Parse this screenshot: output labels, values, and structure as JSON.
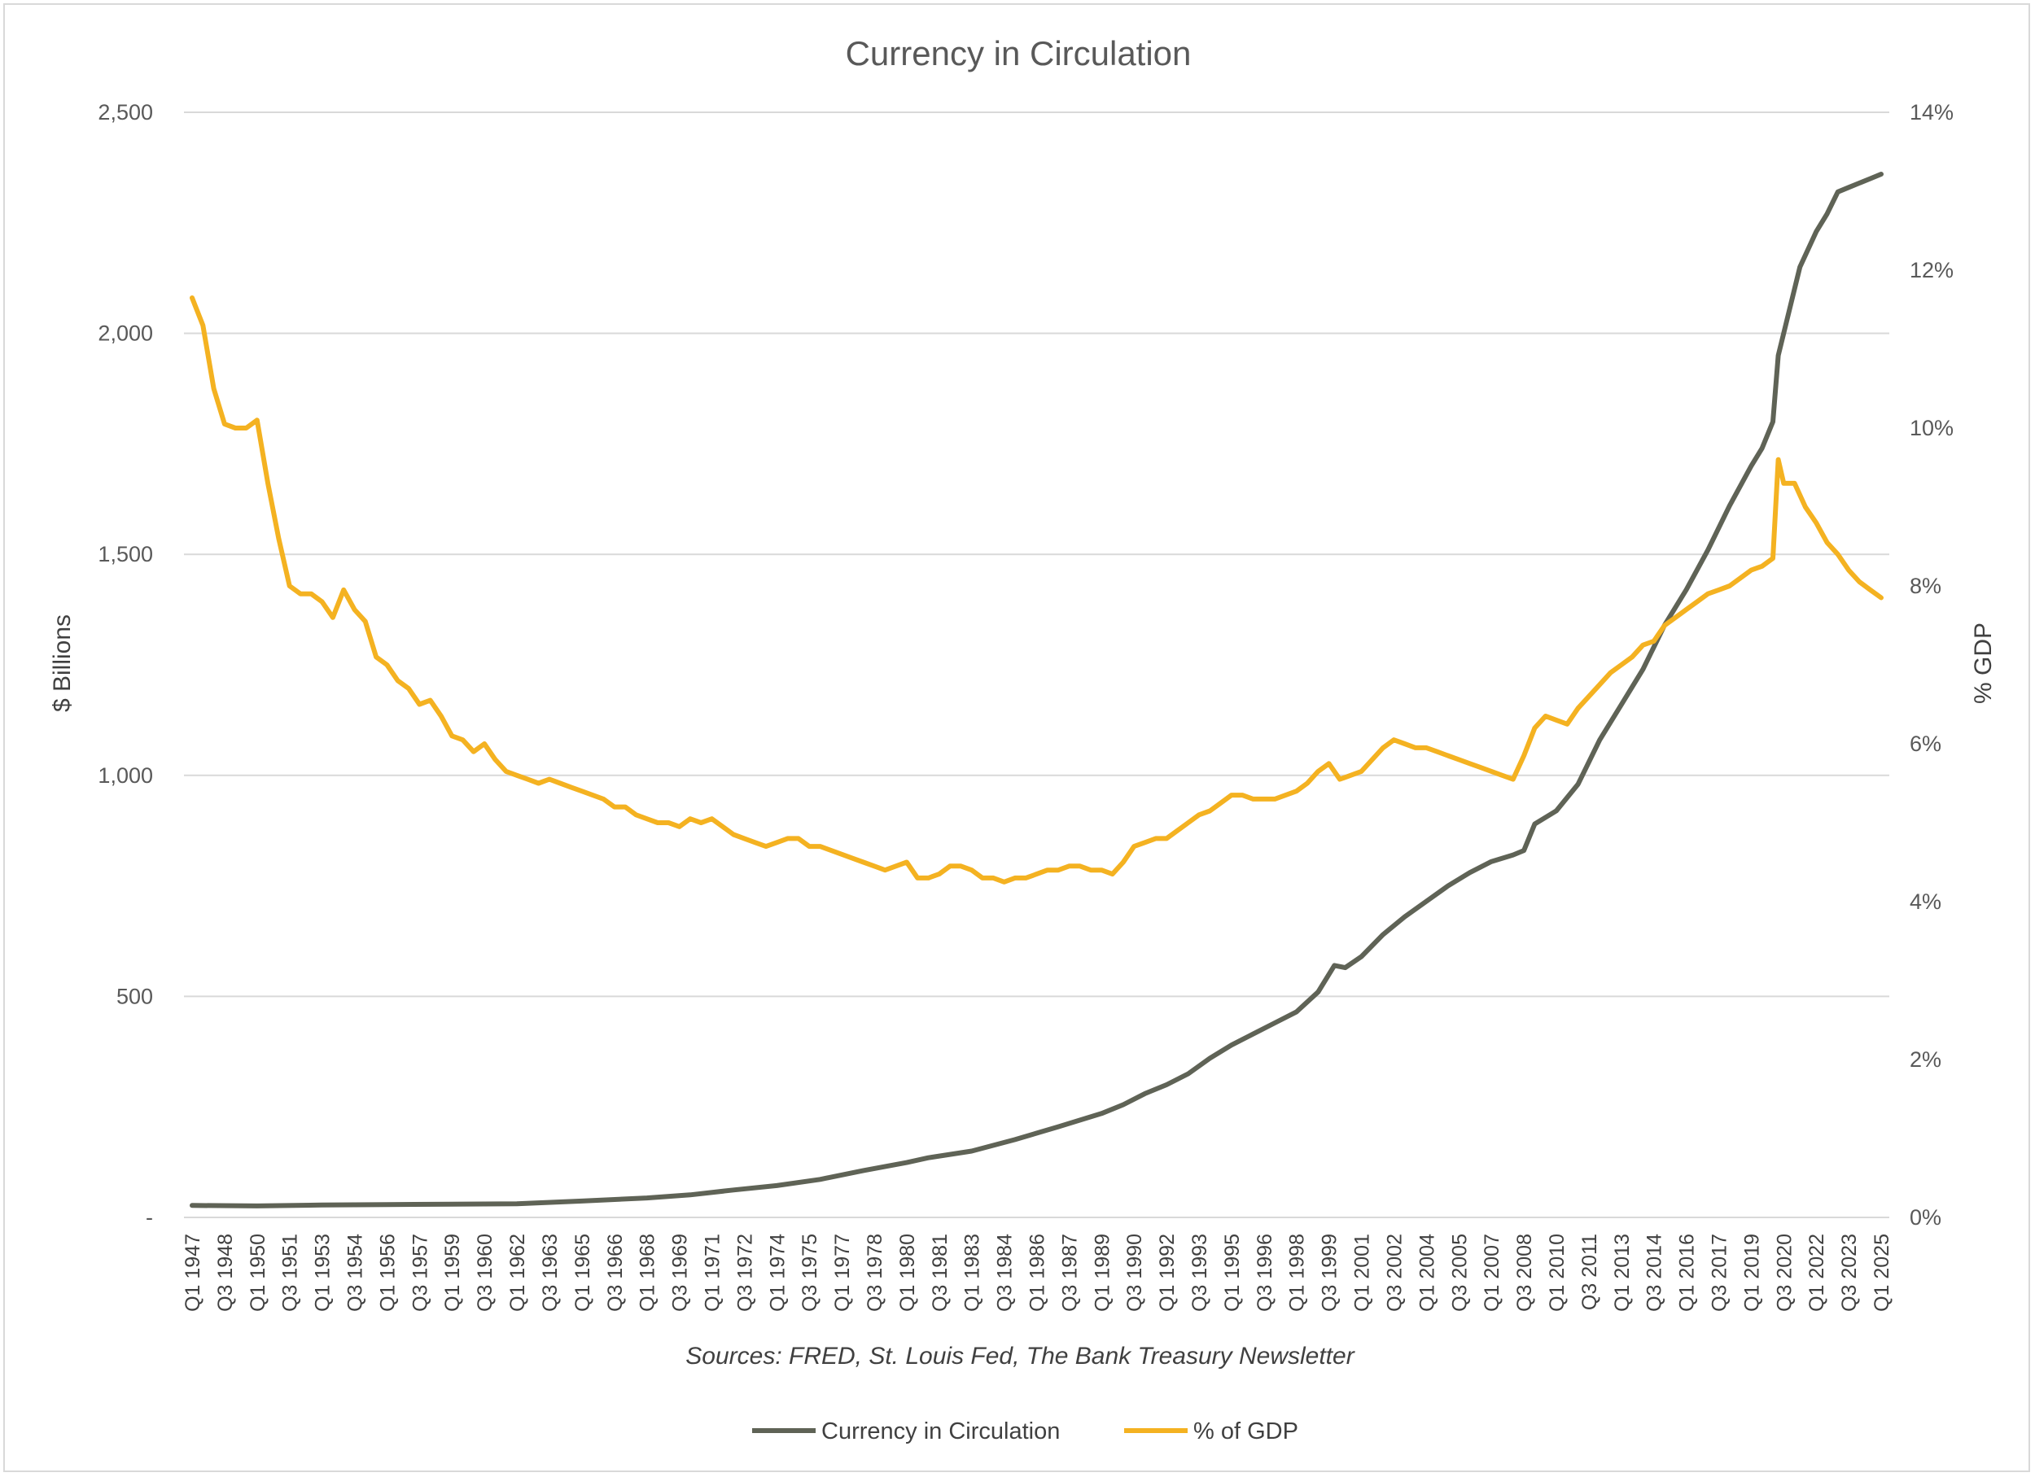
{
  "chart_data": {
    "type": "line",
    "title": "Currency in Circulation",
    "source_note": "Sources: FRED, St. Louis Fed, The Bank Treasury Newsletter",
    "y_left": {
      "label": "$ Billions",
      "range": [
        0,
        2500
      ],
      "ticks": [
        0,
        500,
        1000,
        1500,
        2000,
        2500
      ],
      "tick_labels": [
        "-",
        "500",
        "1,000",
        "1,500",
        "2,000",
        "2,500"
      ]
    },
    "y_right": {
      "label": "% GDP",
      "range": [
        0,
        14
      ],
      "ticks": [
        0,
        2,
        4,
        6,
        8,
        10,
        12,
        14
      ],
      "tick_labels": [
        "0%",
        "2%",
        "4%",
        "6%",
        "8%",
        "10%",
        "12%",
        "14%"
      ]
    },
    "x_range": [
      1947.0,
      2025.0
    ],
    "x_tick_labels": [
      "Q1 1947",
      "Q3 1948",
      "Q1 1950",
      "Q3 1951",
      "Q1 1953",
      "Q3 1954",
      "Q1 1956",
      "Q3 1957",
      "Q1 1959",
      "Q3 1960",
      "Q1 1962",
      "Q3 1963",
      "Q1 1965",
      "Q3 1966",
      "Q1 1968",
      "Q3 1969",
      "Q1 1971",
      "Q3 1972",
      "Q1 1974",
      "Q3 1975",
      "Q1 1977",
      "Q3 1978",
      "Q1 1980",
      "Q3 1981",
      "Q1 1983",
      "Q3 1984",
      "Q1 1986",
      "Q3 1987",
      "Q1 1989",
      "Q3 1990",
      "Q1 1992",
      "Q3 1993",
      "Q1 1995",
      "Q3 1996",
      "Q1 1998",
      "Q3 1999",
      "Q1 2001",
      "Q3 2002",
      "Q1 2004",
      "Q3 2005",
      "Q1 2007",
      "Q3 2008",
      "Q1 2010",
      "Q3 2011",
      "Q1 2013",
      "Q3 2014",
      "Q1 2016",
      "Q3 2017",
      "Q1 2019",
      "Q3 2020",
      "Q1 2022",
      "Q3 2023",
      "Q1 2025"
    ],
    "grid": true,
    "legend_position": "bottom",
    "series": [
      {
        "name": "Currency in Circulation",
        "axis": "left",
        "color": "#5f6356",
        "points": [
          [
            1947.0,
            27
          ],
          [
            1950.0,
            26
          ],
          [
            1953.0,
            28
          ],
          [
            1956.0,
            29
          ],
          [
            1959.0,
            30
          ],
          [
            1962.0,
            31
          ],
          [
            1965.0,
            37
          ],
          [
            1968.0,
            44
          ],
          [
            1970.0,
            51
          ],
          [
            1972.0,
            62
          ],
          [
            1974.0,
            72
          ],
          [
            1976.0,
            86
          ],
          [
            1978.0,
            106
          ],
          [
            1980.0,
            124
          ],
          [
            1981.0,
            135
          ],
          [
            1983.0,
            150
          ],
          [
            1985.0,
            176
          ],
          [
            1987.0,
            205
          ],
          [
            1989.0,
            235
          ],
          [
            1990.0,
            255
          ],
          [
            1991.0,
            280
          ],
          [
            1992.0,
            300
          ],
          [
            1993.0,
            325
          ],
          [
            1994.0,
            360
          ],
          [
            1995.0,
            390
          ],
          [
            1996.0,
            415
          ],
          [
            1997.0,
            440
          ],
          [
            1998.0,
            465
          ],
          [
            1999.0,
            510
          ],
          [
            1999.75,
            570
          ],
          [
            2000.25,
            565
          ],
          [
            2001.0,
            590
          ],
          [
            2002.0,
            640
          ],
          [
            2003.0,
            680
          ],
          [
            2004.0,
            715
          ],
          [
            2005.0,
            750
          ],
          [
            2006.0,
            780
          ],
          [
            2007.0,
            805
          ],
          [
            2008.0,
            820
          ],
          [
            2008.5,
            830
          ],
          [
            2009.0,
            890
          ],
          [
            2010.0,
            920
          ],
          [
            2011.0,
            980
          ],
          [
            2012.0,
            1080
          ],
          [
            2013.0,
            1160
          ],
          [
            2014.0,
            1240
          ],
          [
            2015.0,
            1340
          ],
          [
            2016.0,
            1420
          ],
          [
            2017.0,
            1510
          ],
          [
            2018.0,
            1610
          ],
          [
            2019.0,
            1700
          ],
          [
            2019.5,
            1740
          ],
          [
            2020.0,
            1800
          ],
          [
            2020.25,
            1950
          ],
          [
            2020.75,
            2050
          ],
          [
            2021.25,
            2150
          ],
          [
            2022.0,
            2230
          ],
          [
            2022.5,
            2270
          ],
          [
            2023.0,
            2320
          ],
          [
            2023.5,
            2330
          ],
          [
            2024.0,
            2340
          ],
          [
            2024.5,
            2350
          ],
          [
            2025.0,
            2360
          ]
        ]
      },
      {
        "name": "% of GDP",
        "axis": "right",
        "color": "#f4b221",
        "points": [
          [
            1947.0,
            11.65
          ],
          [
            1947.5,
            11.3
          ],
          [
            1948.0,
            10.5
          ],
          [
            1948.5,
            10.05
          ],
          [
            1949.0,
            10.0
          ],
          [
            1949.5,
            10.0
          ],
          [
            1950.0,
            10.1
          ],
          [
            1950.5,
            9.3
          ],
          [
            1951.0,
            8.6
          ],
          [
            1951.5,
            8.0
          ],
          [
            1952.0,
            7.9
          ],
          [
            1952.5,
            7.9
          ],
          [
            1953.0,
            7.8
          ],
          [
            1953.5,
            7.6
          ],
          [
            1954.0,
            7.95
          ],
          [
            1954.5,
            7.7
          ],
          [
            1955.0,
            7.55
          ],
          [
            1955.5,
            7.1
          ],
          [
            1956.0,
            7.0
          ],
          [
            1956.5,
            6.8
          ],
          [
            1957.0,
            6.7
          ],
          [
            1957.5,
            6.5
          ],
          [
            1958.0,
            6.55
          ],
          [
            1958.5,
            6.35
          ],
          [
            1959.0,
            6.1
          ],
          [
            1959.5,
            6.05
          ],
          [
            1960.0,
            5.9
          ],
          [
            1960.5,
            6.0
          ],
          [
            1961.0,
            5.8
          ],
          [
            1961.5,
            5.65
          ],
          [
            1962.0,
            5.6
          ],
          [
            1962.5,
            5.55
          ],
          [
            1963.0,
            5.5
          ],
          [
            1963.5,
            5.55
          ],
          [
            1964.0,
            5.5
          ],
          [
            1964.5,
            5.45
          ],
          [
            1965.0,
            5.4
          ],
          [
            1965.5,
            5.35
          ],
          [
            1966.0,
            5.3
          ],
          [
            1966.5,
            5.2
          ],
          [
            1967.0,
            5.2
          ],
          [
            1967.5,
            5.1
          ],
          [
            1968.0,
            5.05
          ],
          [
            1968.5,
            5.0
          ],
          [
            1969.0,
            5.0
          ],
          [
            1969.5,
            4.95
          ],
          [
            1970.0,
            5.05
          ],
          [
            1970.5,
            5.0
          ],
          [
            1971.0,
            5.05
          ],
          [
            1971.5,
            4.95
          ],
          [
            1972.0,
            4.85
          ],
          [
            1972.5,
            4.8
          ],
          [
            1973.0,
            4.75
          ],
          [
            1973.5,
            4.7
          ],
          [
            1974.0,
            4.75
          ],
          [
            1974.5,
            4.8
          ],
          [
            1975.0,
            4.8
          ],
          [
            1975.5,
            4.7
          ],
          [
            1976.0,
            4.7
          ],
          [
            1976.5,
            4.65
          ],
          [
            1977.0,
            4.6
          ],
          [
            1977.5,
            4.55
          ],
          [
            1978.0,
            4.5
          ],
          [
            1978.5,
            4.45
          ],
          [
            1979.0,
            4.4
          ],
          [
            1979.5,
            4.45
          ],
          [
            1980.0,
            4.5
          ],
          [
            1980.5,
            4.3
          ],
          [
            1981.0,
            4.3
          ],
          [
            1981.5,
            4.35
          ],
          [
            1982.0,
            4.45
          ],
          [
            1982.5,
            4.45
          ],
          [
            1983.0,
            4.4
          ],
          [
            1983.5,
            4.3
          ],
          [
            1984.0,
            4.3
          ],
          [
            1984.5,
            4.25
          ],
          [
            1985.0,
            4.3
          ],
          [
            1985.5,
            4.3
          ],
          [
            1986.0,
            4.35
          ],
          [
            1986.5,
            4.4
          ],
          [
            1987.0,
            4.4
          ],
          [
            1987.5,
            4.45
          ],
          [
            1988.0,
            4.45
          ],
          [
            1988.5,
            4.4
          ],
          [
            1989.0,
            4.4
          ],
          [
            1989.5,
            4.35
          ],
          [
            1990.0,
            4.5
          ],
          [
            1990.5,
            4.7
          ],
          [
            1991.0,
            4.75
          ],
          [
            1991.5,
            4.8
          ],
          [
            1992.0,
            4.8
          ],
          [
            1992.5,
            4.9
          ],
          [
            1993.0,
            5.0
          ],
          [
            1993.5,
            5.1
          ],
          [
            1994.0,
            5.15
          ],
          [
            1994.5,
            5.25
          ],
          [
            1995.0,
            5.35
          ],
          [
            1995.5,
            5.35
          ],
          [
            1996.0,
            5.3
          ],
          [
            1996.5,
            5.3
          ],
          [
            1997.0,
            5.3
          ],
          [
            1997.5,
            5.35
          ],
          [
            1998.0,
            5.4
          ],
          [
            1998.5,
            5.5
          ],
          [
            1999.0,
            5.65
          ],
          [
            1999.5,
            5.75
          ],
          [
            2000.0,
            5.55
          ],
          [
            2000.5,
            5.6
          ],
          [
            2001.0,
            5.65
          ],
          [
            2001.5,
            5.8
          ],
          [
            2002.0,
            5.95
          ],
          [
            2002.5,
            6.05
          ],
          [
            2003.0,
            6.0
          ],
          [
            2003.5,
            5.95
          ],
          [
            2004.0,
            5.95
          ],
          [
            2004.5,
            5.9
          ],
          [
            2005.0,
            5.85
          ],
          [
            2005.5,
            5.8
          ],
          [
            2006.0,
            5.75
          ],
          [
            2006.5,
            5.7
          ],
          [
            2007.0,
            5.65
          ],
          [
            2007.5,
            5.6
          ],
          [
            2008.0,
            5.55
          ],
          [
            2008.5,
            5.85
          ],
          [
            2009.0,
            6.2
          ],
          [
            2009.5,
            6.35
          ],
          [
            2010.0,
            6.3
          ],
          [
            2010.5,
            6.25
          ],
          [
            2011.0,
            6.45
          ],
          [
            2011.5,
            6.6
          ],
          [
            2012.0,
            6.75
          ],
          [
            2012.5,
            6.9
          ],
          [
            2013.0,
            7.0
          ],
          [
            2013.5,
            7.1
          ],
          [
            2014.0,
            7.25
          ],
          [
            2014.5,
            7.3
          ],
          [
            2015.0,
            7.5
          ],
          [
            2015.5,
            7.6
          ],
          [
            2016.0,
            7.7
          ],
          [
            2016.5,
            7.8
          ],
          [
            2017.0,
            7.9
          ],
          [
            2017.5,
            7.95
          ],
          [
            2018.0,
            8.0
          ],
          [
            2018.5,
            8.1
          ],
          [
            2019.0,
            8.2
          ],
          [
            2019.5,
            8.25
          ],
          [
            2020.0,
            8.35
          ],
          [
            2020.25,
            9.6
          ],
          [
            2020.5,
            9.3
          ],
          [
            2021.0,
            9.3
          ],
          [
            2021.5,
            9.0
          ],
          [
            2022.0,
            8.8
          ],
          [
            2022.5,
            8.55
          ],
          [
            2023.0,
            8.4
          ],
          [
            2023.5,
            8.2
          ],
          [
            2024.0,
            8.05
          ],
          [
            2024.5,
            7.95
          ],
          [
            2025.0,
            7.85
          ]
        ]
      }
    ]
  }
}
